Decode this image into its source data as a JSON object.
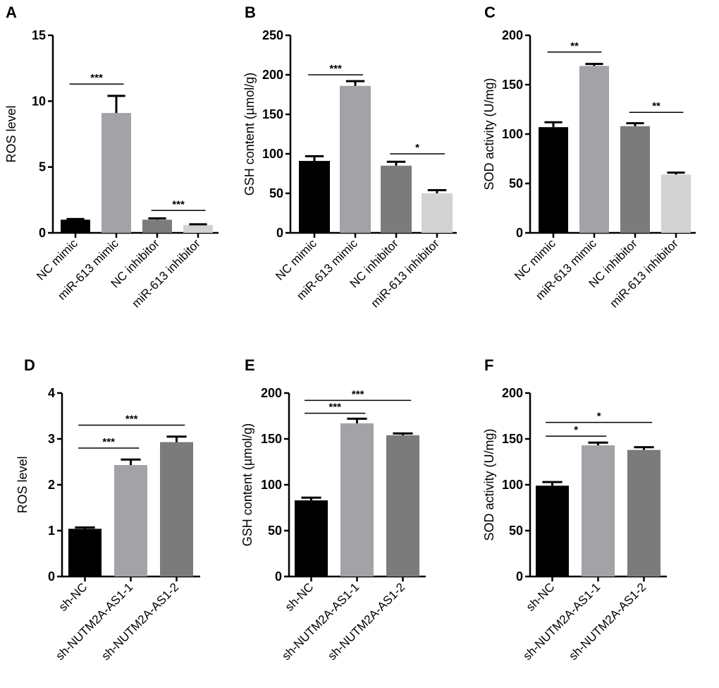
{
  "chart_data": [
    {
      "type": "bar",
      "panel": "A",
      "ylabel": "ROS level",
      "ylim": [
        0,
        15
      ],
      "yticks": [
        0,
        5,
        10,
        15
      ],
      "categories": [
        "NC mimic",
        "miR-613 mimic",
        "NC inhibitor",
        "miR-613 inhibitor"
      ],
      "values": [
        1.0,
        9.1,
        1.0,
        0.6
      ],
      "errors": [
        0.05,
        1.3,
        0.1,
        0.05
      ],
      "colors": [
        "#000000",
        "#a2a2a7",
        "#7b7b7b",
        "#d2d2d2"
      ],
      "significance": [
        {
          "pair": [
            0,
            1
          ],
          "y": 11.3,
          "label": "***"
        },
        {
          "pair": [
            2,
            3
          ],
          "y": 1.7,
          "label": "***"
        }
      ]
    },
    {
      "type": "bar",
      "panel": "B",
      "ylabel": "GSH content (µmol/g)",
      "ylim": [
        0,
        250
      ],
      "yticks": [
        0,
        50,
        100,
        150,
        200,
        250
      ],
      "categories": [
        "NC mimic",
        "miR-613 mimic",
        "NC inhibitor",
        "miR-613 inhibitor"
      ],
      "values": [
        91,
        186,
        85,
        50
      ],
      "errors": [
        6,
        6,
        5,
        4
      ],
      "colors": [
        "#000000",
        "#a2a2a7",
        "#7b7b7b",
        "#d2d2d2"
      ],
      "significance": [
        {
          "pair": [
            0,
            1
          ],
          "y": 200,
          "label": "***"
        },
        {
          "pair": [
            2,
            3
          ],
          "y": 100,
          "label": "*"
        }
      ]
    },
    {
      "type": "bar",
      "panel": "C",
      "ylabel": "SOD activity (U/mg)",
      "ylim": [
        0,
        200
      ],
      "yticks": [
        0,
        50,
        100,
        150,
        200
      ],
      "categories": [
        "NC mimic",
        "miR-613 mimic",
        "NC inhibitor",
        "miR-613 inhibitor"
      ],
      "values": [
        107,
        169,
        108,
        59
      ],
      "errors": [
        5,
        2,
        3,
        2
      ],
      "colors": [
        "#000000",
        "#a2a2a7",
        "#7b7b7b",
        "#d2d2d2"
      ],
      "significance": [
        {
          "pair": [
            0,
            1
          ],
          "y": 183,
          "label": "**"
        },
        {
          "pair": [
            2,
            3
          ],
          "y": 122,
          "label": "**"
        }
      ]
    },
    {
      "type": "bar",
      "panel": "D",
      "ylabel": "ROS level",
      "ylim": [
        0,
        4
      ],
      "yticks": [
        0,
        1,
        2,
        3,
        4
      ],
      "categories": [
        "sh-NC",
        "sh-NUTM2A-AS1-1",
        "sh-NUTM2A-AS1-2"
      ],
      "values": [
        1.04,
        2.43,
        2.93
      ],
      "errors": [
        0.03,
        0.12,
        0.12
      ],
      "colors": [
        "#000000",
        "#a2a2a7",
        "#7b7b7b"
      ],
      "significance": [
        {
          "pair": [
            0,
            1
          ],
          "y": 2.8,
          "label": "***"
        },
        {
          "pair": [
            0,
            2
          ],
          "y": 3.3,
          "label": "***"
        }
      ]
    },
    {
      "type": "bar",
      "panel": "E",
      "ylabel": "GSH content (µmol/g)",
      "ylim": [
        0,
        200
      ],
      "yticks": [
        0,
        50,
        100,
        150,
        200
      ],
      "categories": [
        "sh-NC",
        "sh-NUTM2A-AS1-1",
        "sh-NUTM2A-AS1-2"
      ],
      "values": [
        83,
        167,
        154
      ],
      "errors": [
        3,
        5,
        2
      ],
      "colors": [
        "#000000",
        "#a2a2a7",
        "#7b7b7b"
      ],
      "significance": [
        {
          "pair": [
            0,
            1
          ],
          "y": 178,
          "label": "***"
        },
        {
          "pair": [
            0,
            2
          ],
          "y": 192,
          "label": "***"
        }
      ]
    },
    {
      "type": "bar",
      "panel": "F",
      "ylabel": "SOD activity (U/mg)",
      "ylim": [
        0,
        200
      ],
      "yticks": [
        0,
        50,
        100,
        150,
        200
      ],
      "categories": [
        "sh-NC",
        "sh-NUTM2A-AS1-1",
        "sh-NUTM2A-AS1-2"
      ],
      "values": [
        99,
        143,
        138
      ],
      "errors": [
        4,
        3,
        3
      ],
      "colors": [
        "#000000",
        "#a2a2a7",
        "#7b7b7b"
      ],
      "significance": [
        {
          "pair": [
            0,
            1
          ],
          "y": 153,
          "label": "*"
        },
        {
          "pair": [
            0,
            2
          ],
          "y": 168,
          "label": "*"
        }
      ]
    }
  ]
}
